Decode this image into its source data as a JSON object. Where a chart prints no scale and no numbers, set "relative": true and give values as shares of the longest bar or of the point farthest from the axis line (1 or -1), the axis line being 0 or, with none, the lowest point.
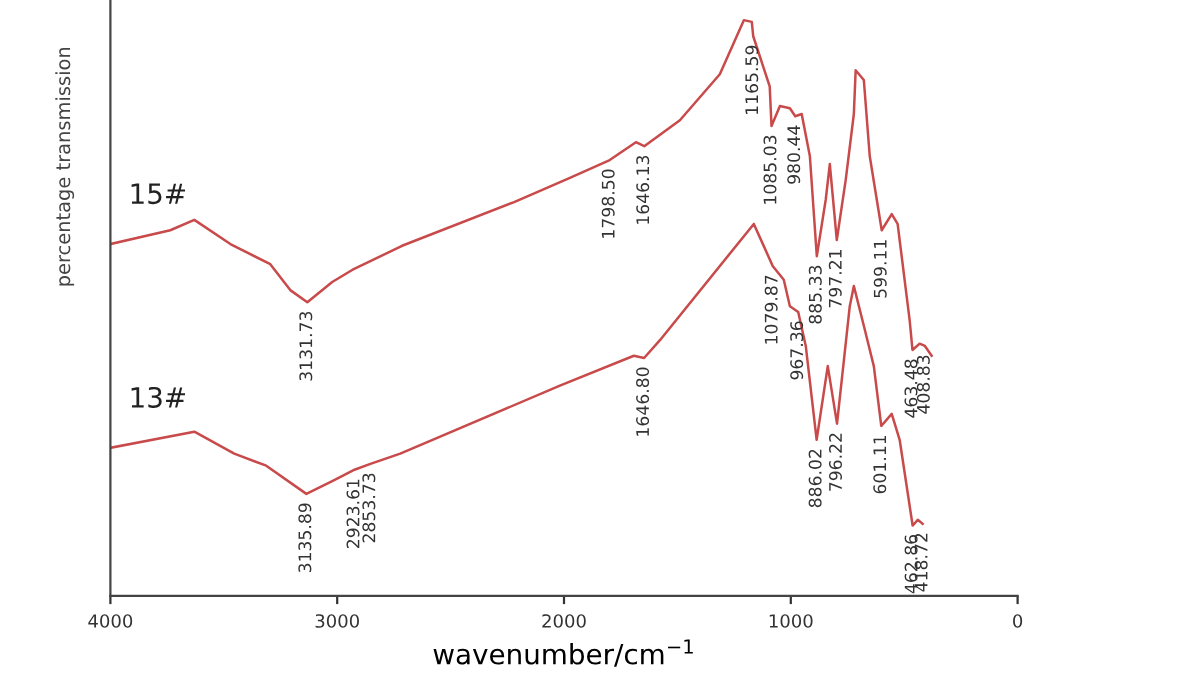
{
  "chart_data": {
    "type": "line",
    "relative": true,
    "xlabel": "wavenumber/cm$^{−1}$",
    "ylabel": "percentage transmission",
    "xlim": [
      4000,
      0
    ],
    "xticks": [
      4000,
      3000,
      2000,
      1000,
      0
    ],
    "tick_labels": "x",
    "grid": false,
    "legend": false,
    "marker": "none",
    "line_style": "solid",
    "series": [
      {
        "name": "15#",
        "color": "#c84a4a",
        "x": [
          4000,
          3736,
          3630,
          3471,
          3295,
          3207,
          3131.73,
          3022,
          2934,
          2714,
          2220,
          1974,
          1798.5,
          1683,
          1646.13,
          1489,
          1313,
          1207,
          1172,
          1165.59,
          1093,
          1085.03,
          1048,
          1004,
          980.44,
          952,
          916,
          885.33,
          846,
          828,
          797.21,
          758,
          722,
          714,
          678,
          652,
          599.11,
          555,
          529,
          476,
          463.48,
          432,
          408.83,
          379
        ],
        "values": [
          0.611,
          0.635,
          0.653,
          0.611,
          0.576,
          0.531,
          0.51,
          0.545,
          0.566,
          0.608,
          0.684,
          0.726,
          0.757,
          0.788,
          0.781,
          0.826,
          0.906,
          1.0,
          0.997,
          0.972,
          0.885,
          0.816,
          0.851,
          0.847,
          0.833,
          0.837,
          0.764,
          0.59,
          0.688,
          0.75,
          0.618,
          0.722,
          0.837,
          0.913,
          0.896,
          0.764,
          0.635,
          0.663,
          0.646,
          0.479,
          0.427,
          0.438,
          0.434,
          0.417
        ]
      },
      {
        "name": "13#",
        "color": "#c84a4a",
        "x": [
          4000,
          3630,
          3454,
          3313,
          3135.89,
          3013,
          2923.61,
          2853.73,
          2722,
          2018,
          1692,
          1646.8,
          1577,
          1163,
          1079.87,
          1031,
          1004,
          967.36,
          934,
          886.02,
          837,
          796.22,
          740,
          722,
          678,
          634,
          601.11,
          555,
          520,
          462.86,
          440,
          418.72
        ],
        "values": [
          0.257,
          0.285,
          0.247,
          0.226,
          0.177,
          0.201,
          0.219,
          0.229,
          0.247,
          0.365,
          0.417,
          0.413,
          0.444,
          0.646,
          0.573,
          0.549,
          0.503,
          0.493,
          0.434,
          0.271,
          0.399,
          0.299,
          0.503,
          0.538,
          0.469,
          0.399,
          0.295,
          0.316,
          0.271,
          0.122,
          0.132,
          0.125
        ]
      }
    ],
    "annotations": [
      {
        "text": "3131.73",
        "x": 3131.73,
        "y": 0.51
      },
      {
        "text": "1798.50",
        "x": 1798.5,
        "y": 0.757
      },
      {
        "text": "1646.13",
        "x": 1646.13,
        "y": 0.781
      },
      {
        "text": "1165.59",
        "x": 1165.59,
        "y": 0.972
      },
      {
        "text": "1085.03",
        "x": 1085.03,
        "y": 0.816
      },
      {
        "text": "980.44",
        "x": 980.44,
        "y": 0.833
      },
      {
        "text": "885.33",
        "x": 885.33,
        "y": 0.59
      },
      {
        "text": "797.21",
        "x": 797.21,
        "y": 0.618
      },
      {
        "text": "599.11",
        "x": 599.11,
        "y": 0.635
      },
      {
        "text": "463.48",
        "x": 463.48,
        "y": 0.427
      },
      {
        "text": "408.83",
        "x": 408.83,
        "y": 0.434
      },
      {
        "text": "3135.89",
        "x": 3135.89,
        "y": 0.177
      },
      {
        "text": "2923.61",
        "x": 2923.61,
        "y": 0.219
      },
      {
        "text": "2853.73",
        "x": 2853.73,
        "y": 0.229
      },
      {
        "text": "1646.80",
        "x": 1646.8,
        "y": 0.413
      },
      {
        "text": "1079.87",
        "x": 1079.87,
        "y": 0.573
      },
      {
        "text": "967.36",
        "x": 967.36,
        "y": 0.493
      },
      {
        "text": "886.02",
        "x": 886.02,
        "y": 0.271
      },
      {
        "text": "796.22",
        "x": 796.22,
        "y": 0.299
      },
      {
        "text": "601.11",
        "x": 601.11,
        "y": 0.295
      },
      {
        "text": "462.86",
        "x": 462.86,
        "y": 0.122
      },
      {
        "text": "418.72",
        "x": 418.72,
        "y": 0.125
      }
    ]
  }
}
